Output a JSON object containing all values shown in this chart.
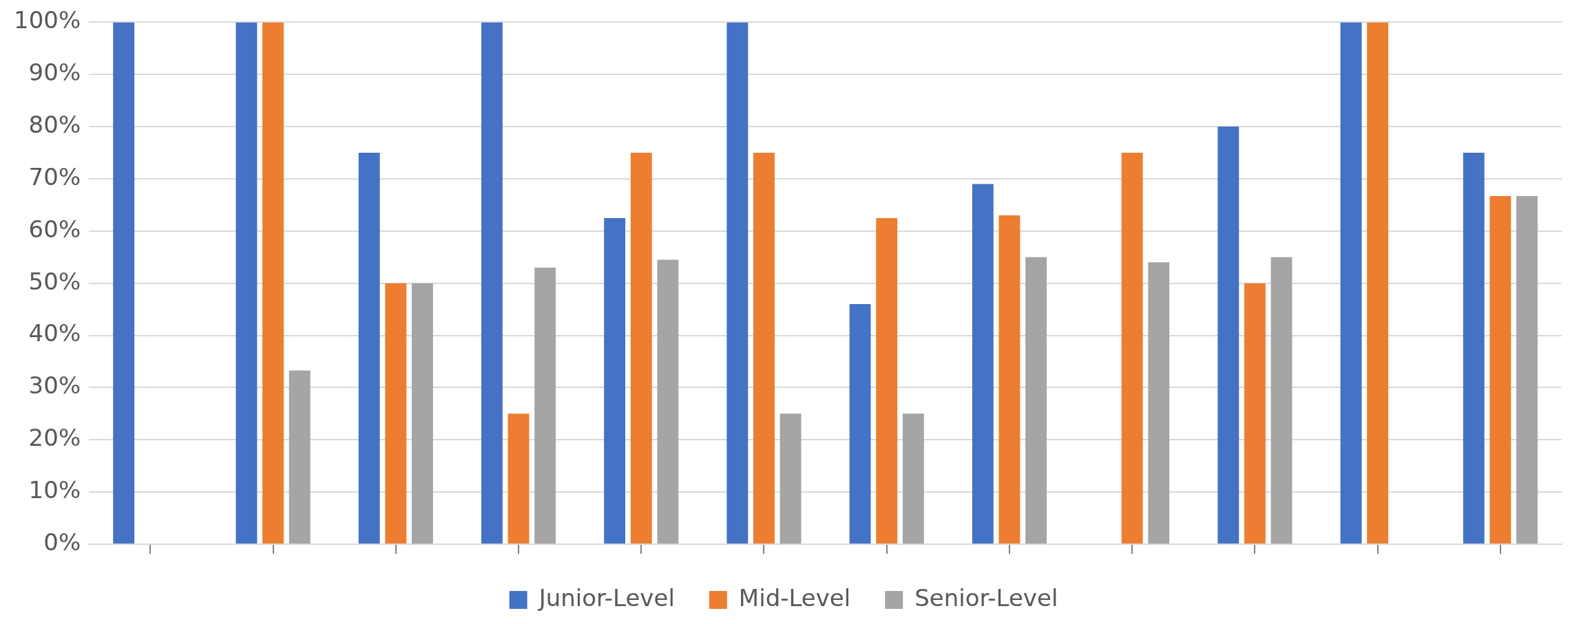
{
  "chart_data": {
    "type": "bar",
    "categories": [
      null,
      null,
      null,
      null,
      null,
      null,
      null,
      null,
      null,
      null,
      null,
      null
    ],
    "series": [
      {
        "name": "Junior-Level",
        "color": "#4472c4",
        "values": [
          100,
          100,
          75,
          100,
          62.5,
          100,
          46,
          69,
          null,
          80,
          100,
          75
        ]
      },
      {
        "name": "Mid-Level",
        "color": "#ed7d31",
        "values": [
          null,
          100,
          50,
          25,
          75,
          75,
          62.5,
          63,
          75,
          50,
          100,
          66.7
        ]
      },
      {
        "name": "Senior-Level",
        "color": "#a5a5a5",
        "values": [
          null,
          33.3,
          50,
          53,
          54.5,
          25,
          25,
          55,
          54,
          55,
          null,
          66.7
        ]
      }
    ],
    "ylim": [
      0,
      100
    ],
    "yticks": [
      {
        "value": 0,
        "label": "0%"
      },
      {
        "value": 10,
        "label": "10%"
      },
      {
        "value": 20,
        "label": "20%"
      },
      {
        "value": 30,
        "label": "30%"
      },
      {
        "value": 40,
        "label": "40%"
      },
      {
        "value": 50,
        "label": "50%"
      },
      {
        "value": 60,
        "label": "60%"
      },
      {
        "value": 70,
        "label": "70%"
      },
      {
        "value": 80,
        "label": "80%"
      },
      {
        "value": 90,
        "label": "90%"
      },
      {
        "value": 100,
        "label": "100%"
      }
    ],
    "grid": "y",
    "legend": "bottom",
    "tick_labels": "y"
  }
}
